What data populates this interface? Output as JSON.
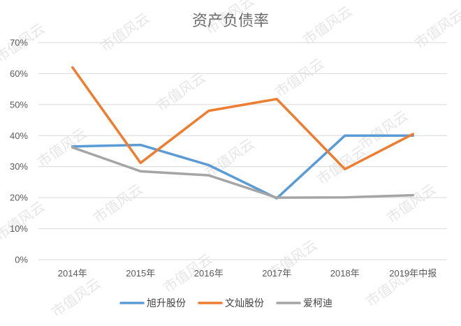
{
  "watermark": "市值风云",
  "chart_data": {
    "type": "line",
    "title": "资产负债率",
    "xlabel": "",
    "ylabel": "",
    "categories": [
      "2014年",
      "2015年",
      "2016年",
      "2017年",
      "2018年",
      "2019年中报"
    ],
    "ylim": [
      0,
      70
    ],
    "yticks": [
      "0%",
      "10%",
      "20%",
      "30%",
      "40%",
      "50%",
      "60%",
      "70%"
    ],
    "grid": true,
    "legend_position": "bottom",
    "series": [
      {
        "name": "旭升股份",
        "color": "#5b9bd5",
        "values": [
          36.5,
          37.0,
          30.5,
          19.8,
          40.0,
          40.0
        ]
      },
      {
        "name": "文灿股份",
        "color": "#ed7d31",
        "values": [
          62.0,
          31.2,
          48.0,
          51.8,
          29.2,
          40.5
        ]
      },
      {
        "name": "爱柯迪",
        "color": "#a5a5a5",
        "values": [
          36.2,
          28.5,
          27.2,
          20.0,
          20.1,
          20.8
        ]
      }
    ]
  }
}
